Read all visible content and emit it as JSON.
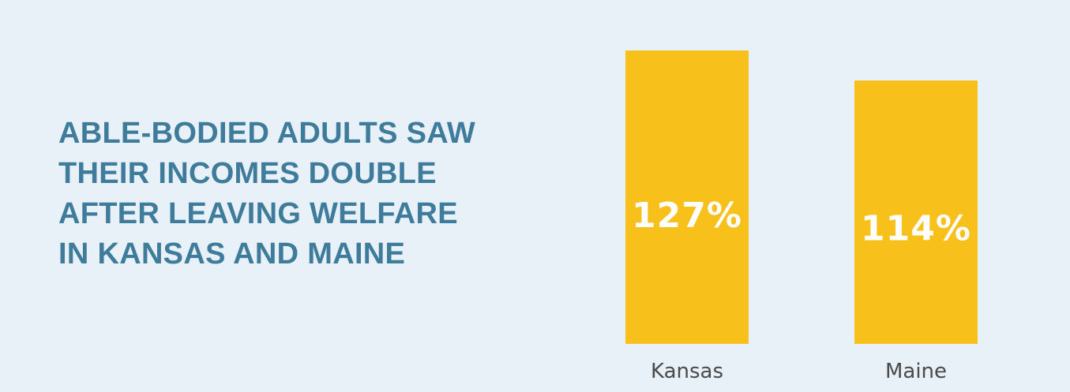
{
  "headline": {
    "lines": [
      "ABLE-BODIED ADULTS SAW",
      "THEIR INCOMES DOUBLE",
      "AFTER LEAVING WELFARE",
      "IN KANSAS AND MAINE"
    ]
  },
  "colors": {
    "background": "#e8f1f7",
    "headline": "#3f7c9c",
    "bar": "#f7c01a",
    "bar_label": "#ffffff",
    "category_label": "#4a4a4a"
  },
  "chart_data": {
    "type": "bar",
    "title": "",
    "xlabel": "",
    "ylabel": "",
    "categories": [
      "Kansas",
      "Maine"
    ],
    "values": [
      127,
      114
    ],
    "value_labels": [
      "127%",
      "114%"
    ],
    "unit": "%",
    "ylim": [
      0,
      127
    ],
    "grid": false,
    "legend": "none"
  }
}
